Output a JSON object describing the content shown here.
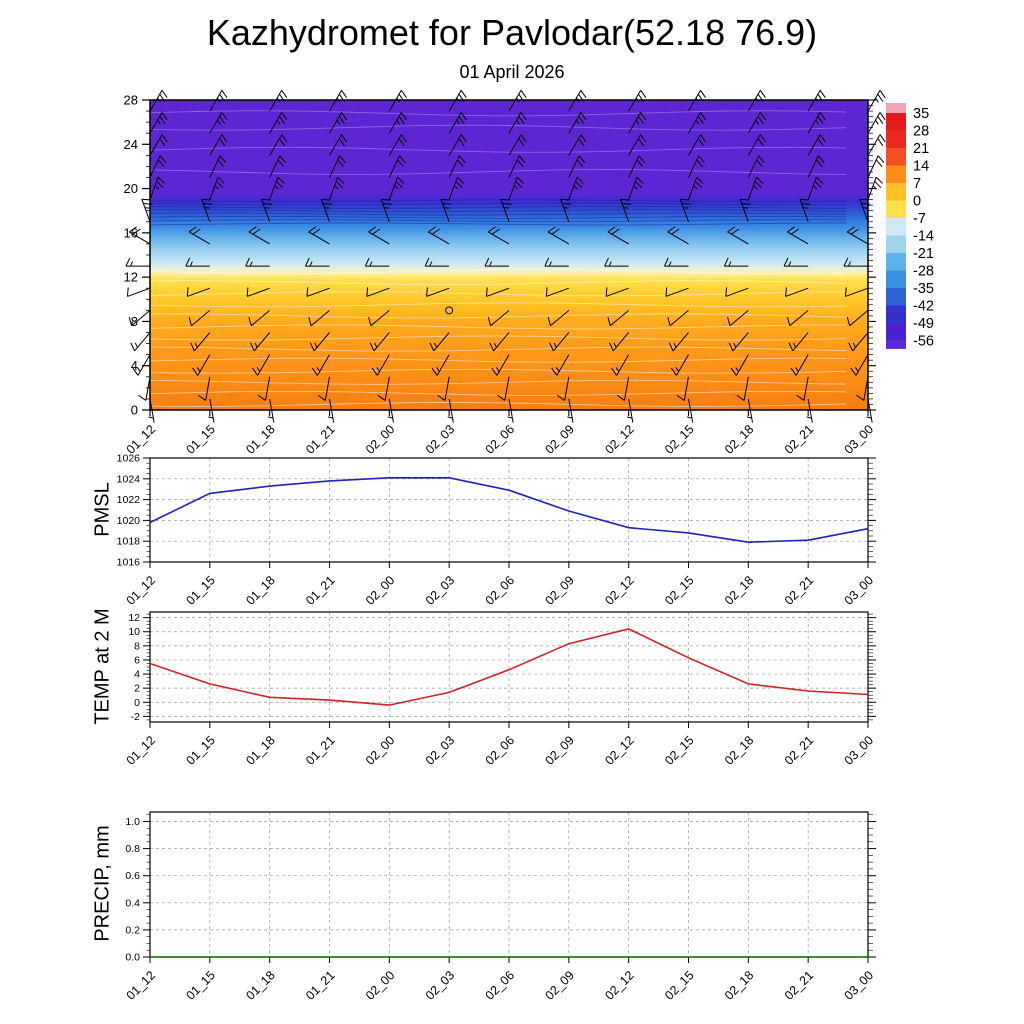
{
  "title": "Kazhydromet for Pavlodar(52.18 76.9)",
  "subtitle": "01 April 2026",
  "time_labels": [
    "01_12",
    "01_15",
    "01_18",
    "01_21",
    "02_00",
    "02_03",
    "02_06",
    "02_09",
    "02_12",
    "02_15",
    "02_18",
    "02_21",
    "03_00"
  ],
  "chart_data": [
    {
      "type": "heatmap",
      "name": "temperature-wind-cross-section",
      "x_categories": [
        "01_12",
        "01_15",
        "01_18",
        "01_21",
        "02_00",
        "02_03",
        "02_06",
        "02_09",
        "02_12",
        "02_15",
        "02_18",
        "02_21",
        "03_00"
      ],
      "ylim": [
        0,
        28
      ],
      "yticks": [
        0,
        4,
        8,
        12,
        16,
        20,
        24,
        28
      ],
      "field_stops": [
        {
          "v": 28,
          "c": "#5c27d2"
        },
        {
          "v": 19.6,
          "c": "#5c27d2"
        },
        {
          "v": 18.9,
          "c": "#3d2ccf"
        },
        {
          "v": 18.2,
          "c": "#2f49d2"
        },
        {
          "v": 17.4,
          "c": "#2e6cdc"
        },
        {
          "v": 16.4,
          "c": "#3e92e5"
        },
        {
          "v": 15.4,
          "c": "#6db4ec"
        },
        {
          "v": 14.4,
          "c": "#9cd2ef"
        },
        {
          "v": 13.4,
          "c": "#c4e4f4"
        },
        {
          "v": 12.7,
          "c": "#ecf2d8"
        },
        {
          "v": 12.3,
          "c": "#fceea0"
        },
        {
          "v": 11.8,
          "c": "#ffe14d"
        },
        {
          "v": 10.8,
          "c": "#ffd23a"
        },
        {
          "v": 9.5,
          "c": "#ffc125"
        },
        {
          "v": 8,
          "c": "#ffab1f"
        },
        {
          "v": 5.5,
          "c": "#ff9a1b"
        },
        {
          "v": 2.5,
          "c": "#fa8b16"
        },
        {
          "v": 0,
          "c": "#f47e11"
        }
      ],
      "contour_groups": [
        {
          "values": [
            0.5,
            1.5,
            2.5,
            3.5,
            4.5,
            5.5,
            6.5,
            7.5,
            8.5,
            9.5,
            10.5,
            11.5,
            12.5
          ],
          "color": "rgba(255,255,255,0.5)",
          "amp": 2
        },
        {
          "values": [
            16.8,
            17.1,
            17.4,
            17.7,
            18.0,
            18.3,
            18.6,
            18.9
          ],
          "color": "rgba(25,25,150,0.5)",
          "amp": 1
        },
        {
          "values": [
            21.5,
            23.5,
            25.5,
            26.8
          ],
          "color": "rgba(185,165,255,0.5)",
          "amp": 2.5
        }
      ],
      "wind": {
        "levels": [
          1,
          3,
          5,
          7,
          9,
          11,
          13,
          15,
          17,
          19,
          21,
          23,
          25,
          27
        ],
        "dir": [
          170,
          190,
          210,
          220,
          230,
          250,
          270,
          300,
          340,
          20,
          25,
          30,
          30,
          30
        ],
        "spd": [
          5,
          10,
          15,
          15,
          10,
          10,
          15,
          20,
          25,
          25,
          20,
          20,
          25,
          25
        ],
        "calm": {
          "col": 5,
          "level": 9
        }
      },
      "colorbar": {
        "labels": [
          35,
          28,
          21,
          14,
          7,
          0,
          -7,
          -14,
          -21,
          -28,
          -35,
          -42,
          -49,
          -56
        ],
        "colors": [
          "#f0a2b6",
          "#e41a1c",
          "#e72c1e",
          "#f05023",
          "#ff8c1a",
          "#ffc125",
          "#ffe14d",
          "#cfe8f5",
          "#9fd4ef",
          "#5fb2e8",
          "#3c8fe0",
          "#2f62d4",
          "#3333cc",
          "#4b22cf",
          "#5e2ad4"
        ]
      }
    },
    {
      "type": "line",
      "name": "PMSL",
      "ylabel": "PMSL",
      "categories": [
        "01_12",
        "01_15",
        "01_18",
        "01_21",
        "02_00",
        "02_03",
        "02_06",
        "02_09",
        "02_12",
        "02_15",
        "02_18",
        "02_21",
        "03_00"
      ],
      "ylim": [
        1016,
        1026
      ],
      "yticks": [
        1016,
        1018,
        1020,
        1022,
        1024,
        1026
      ],
      "minor": 0.5,
      "tick_decimals": 0,
      "color": "#2020c0",
      "values": [
        1019.8,
        1022.6,
        1023.3,
        1023.8,
        1024.1,
        1024.1,
        1022.9,
        1020.9,
        1019.3,
        1018.8,
        1017.9,
        1018.1,
        1019.2
      ]
    },
    {
      "type": "line",
      "name": "TEMP at 2 M",
      "ylabel": "TEMP at 2 M",
      "categories": [
        "01_12",
        "01_15",
        "01_18",
        "01_21",
        "02_00",
        "02_03",
        "02_06",
        "02_09",
        "02_12",
        "02_15",
        "02_18",
        "02_21",
        "03_00"
      ],
      "ylim": [
        -2.8,
        12.8
      ],
      "yticks": [
        -2,
        0,
        2,
        4,
        6,
        8,
        10,
        12
      ],
      "minor": 0.5,
      "tick_decimals": 0,
      "color": "#d42020",
      "values": [
        5.5,
        2.6,
        0.7,
        0.3,
        -0.4,
        1.4,
        4.6,
        8.3,
        10.4,
        6.3,
        2.6,
        1.6,
        1.1
      ]
    },
    {
      "type": "line",
      "name": "PRECIP, mm",
      "ylabel": "PRECIP, mm",
      "categories": [
        "01_12",
        "01_15",
        "01_18",
        "01_21",
        "02_00",
        "02_03",
        "02_06",
        "02_09",
        "02_12",
        "02_15",
        "02_18",
        "02_21",
        "03_00"
      ],
      "ylim": [
        0,
        1.07
      ],
      "yticks": [
        0,
        0.2,
        0.4,
        0.6,
        0.8,
        1.0
      ],
      "minor": 0.05,
      "tick_decimals": 1,
      "color": "#0a7a0a",
      "values": [
        0,
        0,
        0,
        0,
        0,
        0,
        0,
        0,
        0,
        0,
        0,
        0,
        0
      ]
    }
  ]
}
